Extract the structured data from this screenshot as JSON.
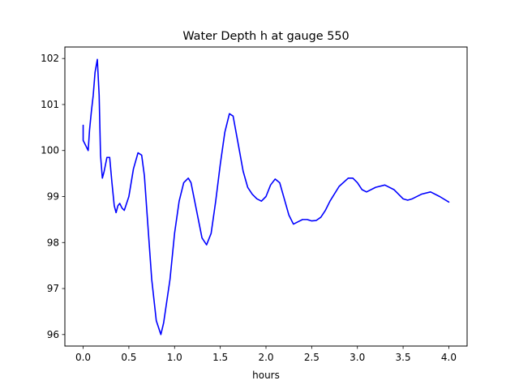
{
  "chart_data": {
    "type": "line",
    "title": "Water Depth h at gauge 550",
    "xlabel": "hours",
    "ylabel": "",
    "xlim": [
      -0.2,
      4.2
    ],
    "ylim": [
      95.75,
      102.25
    ],
    "x_ticks": [
      0.0,
      0.5,
      1.0,
      1.5,
      2.0,
      2.5,
      3.0,
      3.5,
      4.0
    ],
    "x_tick_labels": [
      "0.0",
      "0.5",
      "1.0",
      "1.5",
      "2.0",
      "2.5",
      "3.0",
      "3.5",
      "4.0"
    ],
    "y_ticks": [
      96,
      97,
      98,
      99,
      100,
      101,
      102
    ],
    "y_tick_labels": [
      "96",
      "97",
      "98",
      "99",
      "100",
      "101",
      "102"
    ],
    "grid": false,
    "legend": "none",
    "series": [
      {
        "color": "#0000ff",
        "x": [
          0.0,
          0.0,
          0.01,
          0.03,
          0.055,
          0.07,
          0.09,
          0.11,
          0.13,
          0.155,
          0.175,
          0.19,
          0.21,
          0.23,
          0.26,
          0.29,
          0.315,
          0.34,
          0.36,
          0.38,
          0.4,
          0.425,
          0.45,
          0.5,
          0.55,
          0.6,
          0.64,
          0.67,
          0.7,
          0.75,
          0.8,
          0.85,
          0.88,
          0.95,
          1.0,
          1.05,
          1.1,
          1.15,
          1.18,
          1.22,
          1.3,
          1.35,
          1.4,
          1.45,
          1.5,
          1.55,
          1.6,
          1.64,
          1.7,
          1.75,
          1.8,
          1.85,
          1.9,
          1.95,
          2.0,
          2.05,
          2.1,
          2.15,
          2.2,
          2.25,
          2.3,
          2.35,
          2.4,
          2.45,
          2.5,
          2.55,
          2.6,
          2.65,
          2.7,
          2.8,
          2.9,
          2.95,
          3.0,
          3.05,
          3.1,
          3.2,
          3.3,
          3.4,
          3.5,
          3.55,
          3.6,
          3.7,
          3.8,
          3.9,
          4.0
        ],
        "values": [
          100.55,
          100.22,
          100.18,
          100.1,
          100.0,
          100.45,
          100.85,
          101.2,
          101.7,
          101.98,
          101.2,
          99.9,
          99.4,
          99.55,
          99.85,
          99.85,
          99.3,
          98.8,
          98.65,
          98.8,
          98.85,
          98.75,
          98.7,
          99.0,
          99.6,
          99.95,
          99.9,
          99.45,
          98.6,
          97.2,
          96.3,
          96.0,
          96.25,
          97.2,
          98.2,
          98.9,
          99.3,
          99.4,
          99.3,
          98.9,
          98.1,
          97.95,
          98.2,
          98.9,
          99.7,
          100.4,
          100.8,
          100.75,
          100.1,
          99.55,
          99.2,
          99.05,
          98.95,
          98.9,
          99.0,
          99.25,
          99.38,
          99.3,
          98.95,
          98.6,
          98.4,
          98.45,
          98.5,
          98.5,
          98.47,
          98.48,
          98.55,
          98.7,
          98.9,
          99.22,
          99.4,
          99.4,
          99.3,
          99.15,
          99.1,
          99.2,
          99.25,
          99.15,
          98.95,
          98.92,
          98.95,
          99.05,
          99.1,
          99.0,
          98.88
        ]
      }
    ]
  }
}
